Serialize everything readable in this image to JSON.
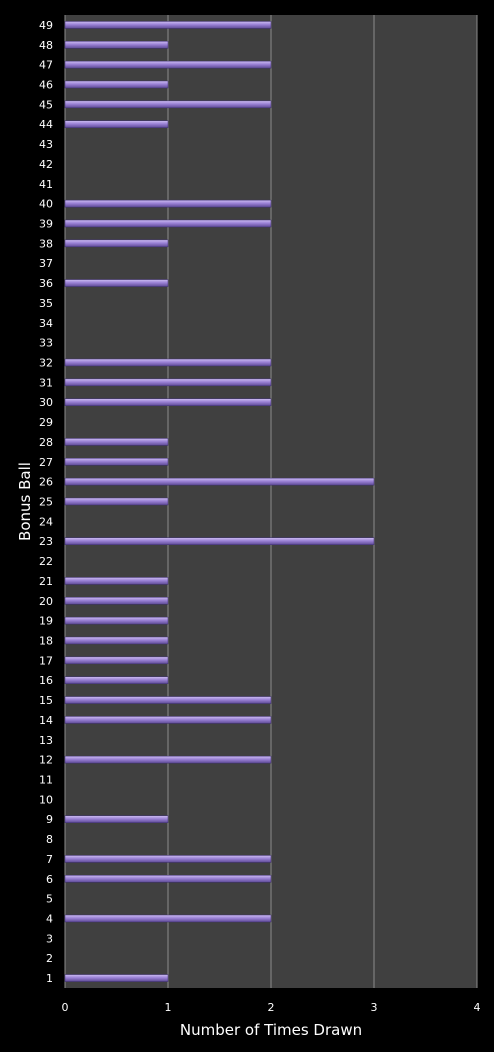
{
  "chart_data": {
    "type": "bar",
    "orientation": "horizontal",
    "title": "",
    "xlabel": "Number of Times Drawn",
    "ylabel": "Bonus Ball",
    "xlim": [
      0,
      4
    ],
    "xticks": [
      "0",
      "1",
      "2",
      "3",
      "4"
    ],
    "grid": "vertical",
    "legend": "none",
    "categories": [
      "1",
      "2",
      "3",
      "4",
      "5",
      "6",
      "7",
      "8",
      "9",
      "10",
      "11",
      "12",
      "13",
      "14",
      "15",
      "16",
      "17",
      "18",
      "19",
      "20",
      "21",
      "22",
      "23",
      "24",
      "25",
      "26",
      "27",
      "28",
      "29",
      "30",
      "31",
      "32",
      "33",
      "34",
      "35",
      "36",
      "37",
      "38",
      "39",
      "40",
      "41",
      "42",
      "43",
      "44",
      "45",
      "46",
      "47",
      "48",
      "49"
    ],
    "values": [
      1,
      0,
      0,
      2,
      0,
      2,
      2,
      0,
      1,
      0,
      0,
      2,
      0,
      2,
      2,
      1,
      1,
      1,
      1,
      1,
      1,
      0,
      3,
      0,
      1,
      3,
      1,
      1,
      0,
      2,
      2,
      2,
      0,
      0,
      0,
      1,
      0,
      1,
      2,
      2,
      0,
      0,
      0,
      1,
      2,
      1,
      2,
      1,
      2
    ],
    "colors": {
      "background": "#000000",
      "plot_area": "#404040",
      "gridline": "#8c8c8c",
      "bar": "#9b82d6",
      "bar_highlight": "#cdbdf2",
      "bar_shadow": "#5e4a96",
      "text": "#ffffff"
    }
  }
}
